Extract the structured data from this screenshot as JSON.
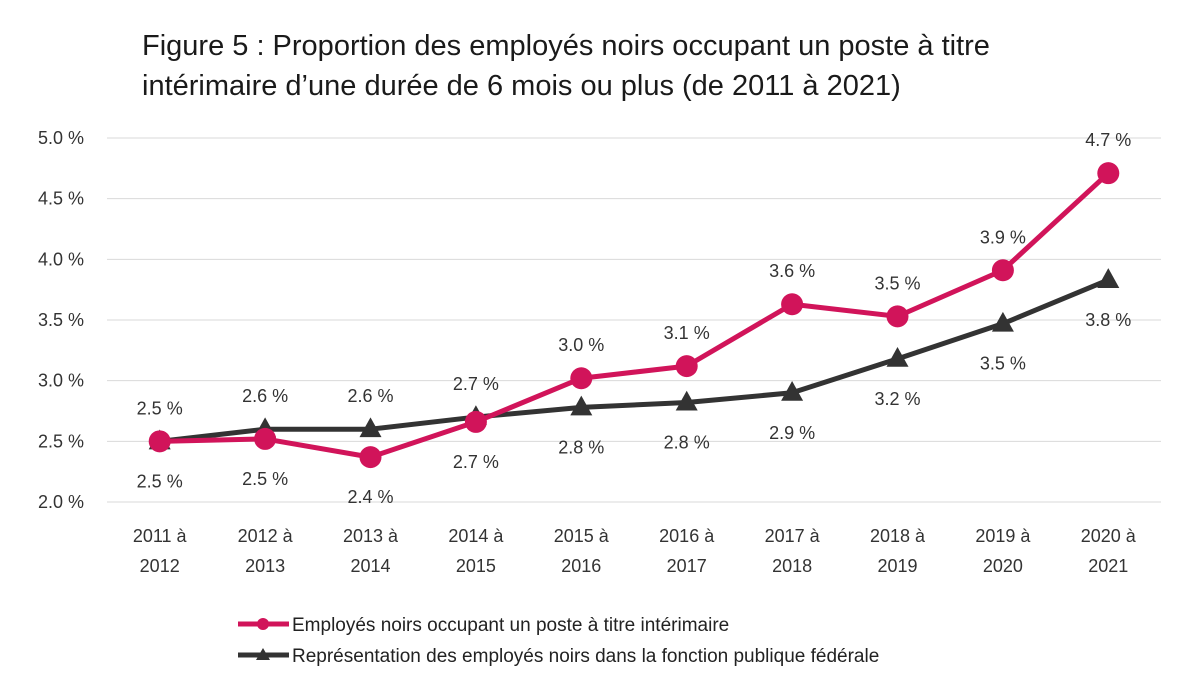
{
  "chart_data": {
    "type": "line",
    "title_lines": [
      "Figure 5 : Proportion des employés noirs occupant un poste à titre",
      "intérimaire d’une durée de 6 mois ou plus (de 2011 à 2021)"
    ],
    "categories": [
      [
        "2011 à",
        "2012"
      ],
      [
        "2012 à",
        "2013"
      ],
      [
        "2013 à",
        "2014"
      ],
      [
        "2014 à",
        "2015"
      ],
      [
        "2015 à",
        "2016"
      ],
      [
        "2016 à",
        "2017"
      ],
      [
        "2017 à",
        "2018"
      ],
      [
        "2018 à",
        "2019"
      ],
      [
        "2019 à",
        "2020"
      ],
      [
        "2020 à",
        "2021"
      ]
    ],
    "ylim": [
      2.0,
      5.0
    ],
    "yticks": [
      {
        "value": 2.0,
        "label": "2.0 %"
      },
      {
        "value": 2.5,
        "label": "2.5 %"
      },
      {
        "value": 3.0,
        "label": "3.0 %"
      },
      {
        "value": 3.5,
        "label": "3.5 %"
      },
      {
        "value": 4.0,
        "label": "4.0 %"
      },
      {
        "value": 4.5,
        "label": "4.5 %"
      },
      {
        "value": 5.0,
        "label": "5.0 %"
      }
    ],
    "grid": true,
    "legend_position": "bottom",
    "series": [
      {
        "name": "Employés noirs occupant un poste à titre intérimaire",
        "color": "#d1145a",
        "marker": "circle",
        "values": [
          2.5,
          2.52,
          2.37,
          2.66,
          3.02,
          3.12,
          3.63,
          3.53,
          3.91,
          4.71
        ],
        "labels": [
          "2.5 %",
          "2.5 %",
          "2.4 %",
          "2.7 %",
          "3.0 %",
          "3.1 %",
          "3.6 %",
          "3.5 %",
          "3.9 %",
          "4.7 %"
        ],
        "label_side": [
          "below",
          "below",
          "below",
          "below",
          "above",
          "above",
          "above",
          "above",
          "above",
          "above"
        ]
      },
      {
        "name": "Représentation des employés noirs dans la fonction publique fédérale",
        "color": "#333333",
        "marker": "triangle",
        "values": [
          2.5,
          2.6,
          2.6,
          2.7,
          2.78,
          2.82,
          2.9,
          3.18,
          3.47,
          3.83
        ],
        "labels": [
          "2.5 %",
          "2.6 %",
          "2.6 %",
          "2.7 %",
          "2.8 %",
          "2.8 %",
          "2.9 %",
          "3.2 %",
          "3.5 %",
          "3.8 %"
        ],
        "label_side": [
          "above",
          "above",
          "above",
          "above",
          "below",
          "below",
          "below",
          "below",
          "below",
          "below"
        ]
      }
    ]
  }
}
